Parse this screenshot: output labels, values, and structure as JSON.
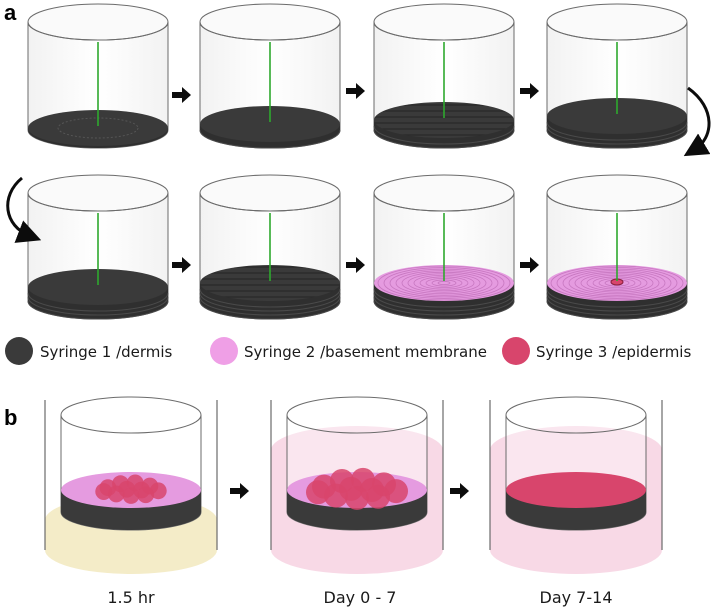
{
  "panel_labels": {
    "a": "a",
    "b": "b"
  },
  "colors": {
    "dermis": "#3a3a3a",
    "basement_membrane": "#e59be0",
    "epidermis": "#d8456c",
    "needle": "#2ea82e",
    "arrow": "#0c0c0c",
    "well_outline": "#6b6b6b",
    "medium_yellow": "#f4ecc8",
    "medium_pink": "#f8d9e6"
  },
  "legend": [
    {
      "label": "Syringe 1 /dermis",
      "color": "#3a3a3a"
    },
    {
      "label": "Syringe 2 /basement membrane",
      "color": "#ef9fe6"
    },
    {
      "label": "Syringe 3 /epidermis",
      "color": "#d8456c"
    }
  ],
  "panel_a": {
    "steps": [
      {
        "layers": 1,
        "top": "dermis-faint",
        "needle": true
      },
      {
        "layers": 2,
        "top": "dermis",
        "needle": true
      },
      {
        "layers": 3,
        "top": "dermis-lines",
        "needle": true
      },
      {
        "layers": 4,
        "top": "dermis",
        "needle": true
      },
      {
        "layers": 4,
        "top": "dermis",
        "needle": true
      },
      {
        "layers": 5,
        "top": "dermis-lines",
        "needle": true
      },
      {
        "layers": 5,
        "top": "basement-membrane",
        "needle": true
      },
      {
        "layers": 5,
        "top": "basement-membrane-epidermis",
        "needle": true
      }
    ]
  },
  "panel_b": {
    "stages": [
      {
        "time": "1.5 hr",
        "medium": "yellow",
        "top": "basement-membrane-spots"
      },
      {
        "time": "Day 0 - 7",
        "medium": "pink",
        "top": "basement-membrane-spots"
      },
      {
        "time": "Day 7-14",
        "medium": "pink",
        "top": "epidermis"
      }
    ]
  }
}
